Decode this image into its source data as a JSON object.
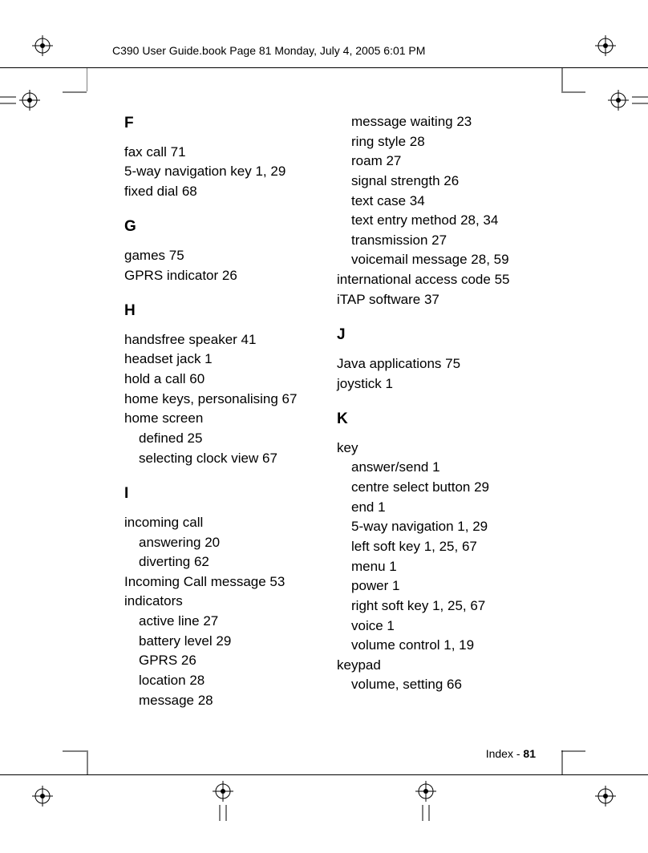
{
  "header": "C390 User Guide.book  Page 81  Monday, July 4, 2005  6:01 PM",
  "footer_label": "Index - ",
  "footer_page": "81",
  "col1": [
    {
      "type": "h",
      "text": "F",
      "first": true
    },
    {
      "type": "e",
      "text": "fax call  71"
    },
    {
      "type": "e",
      "text": "5-way navigation key  1, 29"
    },
    {
      "type": "e",
      "text": "fixed dial  68"
    },
    {
      "type": "h",
      "text": "G"
    },
    {
      "type": "e",
      "text": "games  75"
    },
    {
      "type": "e",
      "text": "GPRS indicator  26"
    },
    {
      "type": "h",
      "text": "H"
    },
    {
      "type": "e",
      "text": "handsfree speaker  41"
    },
    {
      "type": "e",
      "text": "headset jack  1"
    },
    {
      "type": "e",
      "text": "hold a call  60"
    },
    {
      "type": "e",
      "text": "home keys, personalising  67"
    },
    {
      "type": "e",
      "text": "home screen"
    },
    {
      "type": "s",
      "text": "defined  25"
    },
    {
      "type": "s",
      "text": "selecting clock view  67"
    },
    {
      "type": "h",
      "text": "I"
    },
    {
      "type": "e",
      "text": "incoming call"
    },
    {
      "type": "s",
      "text": "answering  20"
    },
    {
      "type": "s",
      "text": "diverting  62"
    },
    {
      "type": "e",
      "text": "Incoming Call message  53"
    },
    {
      "type": "e",
      "text": "indicators"
    },
    {
      "type": "s",
      "text": "active line  27"
    },
    {
      "type": "s",
      "text": "battery level  29"
    },
    {
      "type": "s",
      "text": "GPRS  26"
    },
    {
      "type": "s",
      "text": "location  28"
    },
    {
      "type": "s",
      "text": "message  28"
    }
  ],
  "col2": [
    {
      "type": "s",
      "text": "message waiting  23"
    },
    {
      "type": "s",
      "text": "ring style  28"
    },
    {
      "type": "s",
      "text": "roam  27"
    },
    {
      "type": "s",
      "text": "signal strength  26"
    },
    {
      "type": "s",
      "text": "text case  34"
    },
    {
      "type": "s",
      "text": "text entry method  28, 34"
    },
    {
      "type": "s",
      "text": "transmission  27"
    },
    {
      "type": "s",
      "text": "voicemail message  28, 59"
    },
    {
      "type": "e",
      "text": "international access code  55"
    },
    {
      "type": "e",
      "text": "iTAP software  37"
    },
    {
      "type": "h",
      "text": "J"
    },
    {
      "type": "e",
      "text": "Java applications  75"
    },
    {
      "type": "e",
      "text": "joystick  1"
    },
    {
      "type": "h",
      "text": "K"
    },
    {
      "type": "e",
      "text": "key"
    },
    {
      "type": "s",
      "text": "answer/send  1"
    },
    {
      "type": "s",
      "text": "centre select button  29"
    },
    {
      "type": "s",
      "text": "end  1"
    },
    {
      "type": "s",
      "text": "5-way navigation  1, 29"
    },
    {
      "type": "s",
      "text": "left soft key  1, 25, 67"
    },
    {
      "type": "s",
      "text": "menu  1"
    },
    {
      "type": "s",
      "text": "power  1"
    },
    {
      "type": "s",
      "text": "right soft key  1, 25, 67"
    },
    {
      "type": "s",
      "text": "voice  1"
    },
    {
      "type": "s",
      "text": "volume control  1, 19"
    },
    {
      "type": "e",
      "text": "keypad"
    },
    {
      "type": "s",
      "text": "volume, setting  66"
    }
  ]
}
